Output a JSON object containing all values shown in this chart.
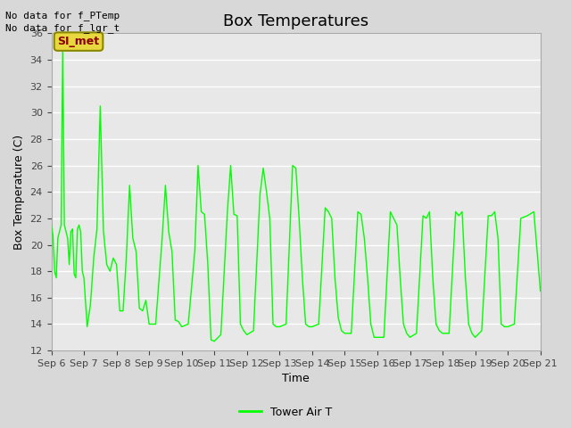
{
  "title": "Box Temperatures",
  "ylabel": "Box Temperature (C)",
  "xlabel": "Time",
  "no_data_texts": [
    "No data for f_PTemp",
    "No data for f_lgr_t"
  ],
  "si_met_label": "SI_met",
  "legend_label": "Tower Air T",
  "ylim": [
    12,
    36
  ],
  "yticks": [
    12,
    14,
    16,
    18,
    20,
    22,
    24,
    26,
    28,
    30,
    32,
    34,
    36
  ],
  "xtick_labels": [
    "Sep 6",
    "Sep 7",
    "Sep 8",
    "Sep 9",
    "Sep 10",
    "Sep 11",
    "Sep 12",
    "Sep 13",
    "Sep 14",
    "Sep 15",
    "Sep 16",
    "Sep 17",
    "Sep 18",
    "Sep 19",
    "Sep 20",
    "Sep 21"
  ],
  "line_color": "#00ff00",
  "background_color": "#d8d8d8",
  "plot_bg_color": "#e8e8e8",
  "grid_color": "#ffffff",
  "title_fontsize": 13,
  "axis_label_fontsize": 9,
  "tick_fontsize": 8,
  "x_values": [
    0.0,
    0.05,
    0.1,
    0.15,
    0.2,
    0.25,
    0.3,
    0.35,
    0.4,
    0.45,
    0.5,
    0.55,
    0.6,
    0.65,
    0.7,
    0.75,
    0.8,
    0.85,
    0.9,
    0.95,
    1.0,
    1.1,
    1.2,
    1.3,
    1.4,
    1.5,
    1.6,
    1.7,
    1.8,
    1.9,
    2.0,
    2.1,
    2.2,
    2.3,
    2.4,
    2.5,
    2.6,
    2.7,
    2.8,
    2.9,
    3.0,
    3.2,
    3.4,
    3.5,
    3.6,
    3.7,
    3.8,
    3.9,
    4.0,
    4.2,
    4.4,
    4.5,
    4.6,
    4.7,
    4.8,
    4.9,
    5.0,
    5.2,
    5.4,
    5.5,
    5.6,
    5.7,
    5.8,
    5.9,
    6.0,
    6.2,
    6.4,
    6.5,
    6.6,
    6.7,
    6.8,
    6.9,
    7.0,
    7.2,
    7.4,
    7.5,
    7.6,
    7.7,
    7.8,
    7.9,
    8.0,
    8.2,
    8.4,
    8.5,
    8.6,
    8.7,
    8.8,
    8.9,
    9.0,
    9.2,
    9.4,
    9.5,
    9.6,
    9.7,
    9.8,
    9.9,
    10.0,
    10.2,
    10.4,
    10.5,
    10.6,
    10.7,
    10.8,
    10.9,
    11.0,
    11.2,
    11.4,
    11.5,
    11.6,
    11.7,
    11.8,
    11.9,
    12.0,
    12.2,
    12.4,
    12.5,
    12.6,
    12.7,
    12.8,
    12.9,
    13.0,
    13.2,
    13.4,
    13.5,
    13.6,
    13.7,
    13.8,
    13.9,
    14.0,
    14.2,
    14.4,
    14.6,
    14.8,
    15.0
  ],
  "y_values": [
    21.5,
    20.7,
    18.0,
    17.5,
    20.5,
    21.0,
    21.5,
    35.0,
    21.5,
    21.0,
    20.5,
    18.5,
    21.0,
    21.2,
    17.8,
    17.5,
    21.2,
    21.5,
    21.0,
    18.0,
    17.5,
    13.8,
    15.5,
    19.0,
    21.2,
    30.5,
    21.0,
    18.5,
    18.0,
    19.0,
    18.5,
    15.0,
    15.0,
    19.0,
    24.5,
    20.5,
    19.5,
    15.2,
    15.0,
    15.8,
    14.0,
    14.0,
    20.5,
    24.5,
    21.0,
    19.5,
    14.3,
    14.2,
    13.8,
    14.0,
    19.5,
    26.0,
    22.5,
    22.3,
    18.5,
    12.8,
    12.7,
    13.2,
    22.5,
    26.0,
    22.3,
    22.2,
    14.0,
    13.5,
    13.2,
    13.5,
    23.8,
    25.8,
    24.0,
    22.0,
    14.0,
    13.8,
    13.8,
    14.0,
    26.0,
    25.8,
    22.0,
    17.5,
    14.0,
    13.8,
    13.8,
    14.0,
    22.8,
    22.5,
    22.0,
    17.5,
    14.5,
    13.5,
    13.3,
    13.3,
    22.5,
    22.3,
    20.5,
    17.5,
    14.0,
    13.0,
    13.0,
    13.0,
    22.5,
    22.0,
    21.5,
    17.5,
    14.0,
    13.3,
    13.0,
    13.3,
    22.2,
    22.0,
    22.5,
    17.5,
    14.0,
    13.5,
    13.3,
    13.3,
    22.5,
    22.2,
    22.5,
    17.5,
    14.0,
    13.3,
    13.0,
    13.5,
    22.2,
    22.2,
    22.5,
    20.5,
    14.0,
    13.8,
    13.8,
    14.0,
    22.0,
    22.2,
    22.5,
    16.5
  ]
}
